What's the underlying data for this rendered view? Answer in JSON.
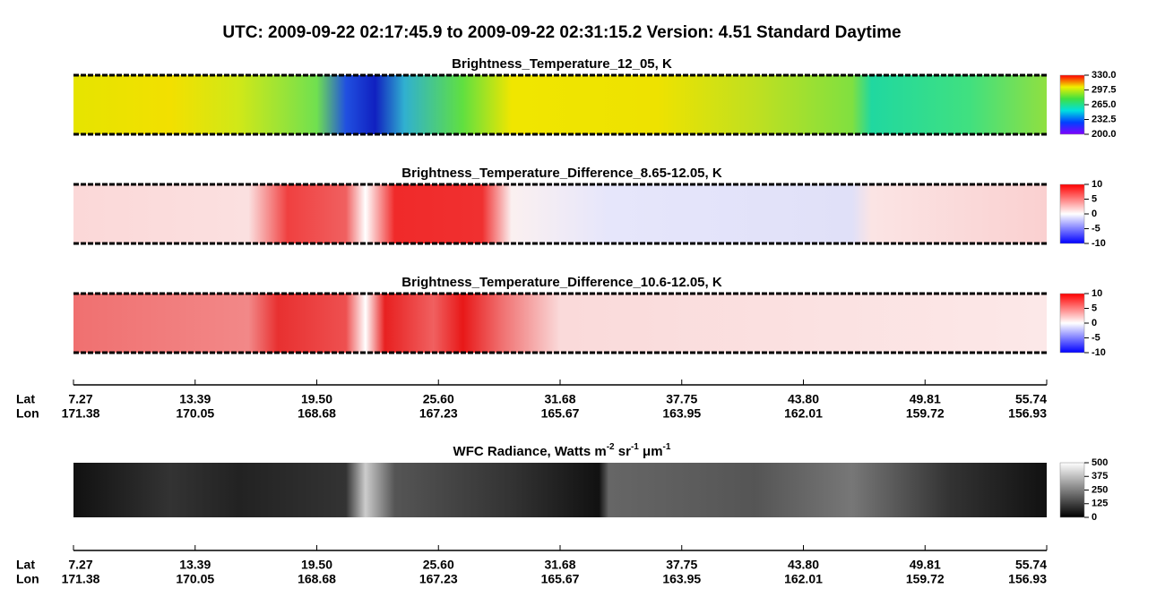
{
  "header": {
    "title": "UTC:  2009-09-22   02:17:45.9  to  2009-09-22   02:31:15.2    Version: 4.51  Standard Daytime"
  },
  "panels": [
    {
      "title": "Brightness_Temperature_12_05, K",
      "clim": [
        200,
        330
      ],
      "ticks": [
        {
          "value": 330,
          "label": "330.0"
        },
        {
          "value": 297.5,
          "label": "297.5"
        },
        {
          "value": 265,
          "label": "265.0"
        },
        {
          "value": 232.5,
          "label": "232.5"
        },
        {
          "value": 200,
          "label": "200.0"
        }
      ]
    },
    {
      "title": "Brightness_Temperature_Difference_8.65-12.05, K",
      "clim": [
        -10,
        10
      ],
      "ticks": [
        10,
        5,
        0,
        -5,
        -10
      ]
    },
    {
      "title": "Brightness_Temperature_Difference_10.6-12.05, K",
      "clim": [
        -10,
        10
      ],
      "ticks": [
        10,
        5,
        0,
        -5,
        -10
      ]
    },
    {
      "title_parts": [
        "WFC Radiance, Watts m",
        "-2",
        " sr",
        "-1",
        " μm",
        "-1"
      ],
      "clim": [
        0,
        500
      ],
      "ticks": [
        500,
        375,
        250,
        125,
        0
      ]
    }
  ],
  "axis": {
    "row_labels": [
      "Lat",
      "Lon"
    ],
    "lat": [
      "7.27",
      "13.39",
      "19.50",
      "25.60",
      "31.68",
      "37.75",
      "43.80",
      "49.81",
      "55.74"
    ],
    "lon": [
      "171.38",
      "170.05",
      "168.68",
      "167.23",
      "165.67",
      "163.95",
      "162.01",
      "159.72",
      "156.93"
    ]
  }
}
